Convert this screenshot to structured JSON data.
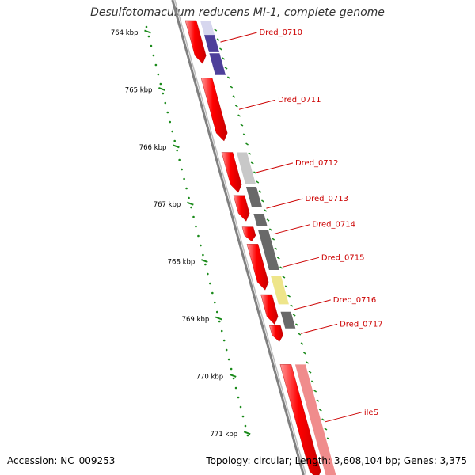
{
  "title": "Desulfotomaculum reducens MI-1, complete genome",
  "footer": {
    "accession": "Accession: NC_009253",
    "topology": "Topology: circular; Length: 3,608,104 bp; Genes: 3,375"
  },
  "ruler": {
    "unit": "kbp",
    "ticks": [
      764,
      765,
      766,
      767,
      768,
      769,
      770,
      771
    ],
    "tick_labels": [
      "764 kbp",
      "765 kbp",
      "766 kbp",
      "767 kbp",
      "768 kbp",
      "769 kbp",
      "770 kbp",
      "771 kbp"
    ]
  },
  "genes": [
    {
      "label": "Dred_0710",
      "color": "#ff0000",
      "strand": "-",
      "start": 764.0,
      "end": 764.75
    },
    {
      "label": "Dred_0711",
      "color": "#ff0000",
      "strand": "-",
      "start": 765.0,
      "end": 766.1
    },
    {
      "label": "Dred_0712",
      "color": "#ff0000",
      "strand": "-",
      "start": 766.3,
      "end": 767.0
    },
    {
      "label": "Dred_0713",
      "color": "#ff0000",
      "strand": "-",
      "start": 767.05,
      "end": 767.5
    },
    {
      "label": "Dred_0714",
      "color": "#ff0000",
      "strand": "-",
      "start": 767.6,
      "end": 767.85
    },
    {
      "label": "Dred_0715",
      "color": "#ff0000",
      "strand": "-",
      "start": 767.9,
      "end": 768.7
    },
    {
      "label": "Dred_0716",
      "color": "#ff0000",
      "strand": "-",
      "start": 768.78,
      "end": 769.3
    },
    {
      "label": "Dred_0717",
      "color": "#ff0000",
      "strand": "-",
      "start": 769.32,
      "end": 769.6
    },
    {
      "label": "ileS",
      "color": "#ff0000",
      "strand": "-",
      "start": 770.0,
      "end": 772.0
    }
  ],
  "feature_blocks": [
    {
      "color": "#d6d6ee",
      "start": 764.0,
      "end": 764.25
    },
    {
      "color": "#4d3f9a",
      "start": 764.25,
      "end": 764.55
    },
    {
      "color": "#4d3f9a",
      "start": 764.57,
      "end": 764.95
    },
    {
      "color": "#c8c8c8",
      "start": 766.3,
      "end": 766.85
    },
    {
      "color": "#696969",
      "start": 766.9,
      "end": 767.25
    },
    {
      "color": "#696969",
      "start": 767.37,
      "end": 767.58
    },
    {
      "color": "#696969",
      "start": 767.65,
      "end": 768.35
    },
    {
      "color": "#eee58a",
      "start": 768.45,
      "end": 768.95
    },
    {
      "color": "#696969",
      "start": 769.08,
      "end": 769.37
    },
    {
      "color": "#f08c8c",
      "start": 770.0,
      "end": 772.0
    }
  ],
  "colors": {
    "backbone": "#808080",
    "ruler_ticks": "#1a8a1a",
    "label_lines": "#cc0000",
    "label_text": "#cc0000"
  }
}
